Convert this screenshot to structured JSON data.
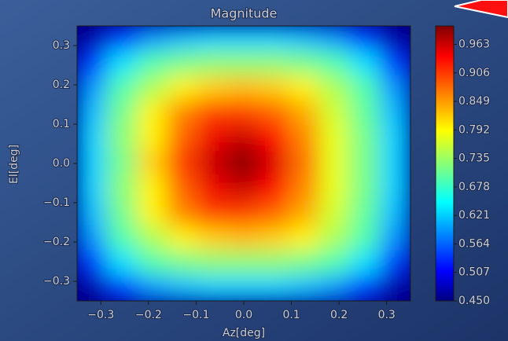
{
  "chart_data": {
    "type": "heatmap",
    "title": "Magnitude",
    "x_label": "Az[deg]",
    "y_label": "El[deg]",
    "xlim": [
      -0.35,
      0.35
    ],
    "ylim": [
      -0.35,
      0.35
    ],
    "xticks": [
      {
        "value": -0.3,
        "label": "−0.3"
      },
      {
        "value": -0.2,
        "label": "−0.2"
      },
      {
        "value": -0.1,
        "label": "−0.1"
      },
      {
        "value": 0,
        "label": "0.0"
      },
      0.1,
      0.2,
      0.3
    ],
    "yticks": [
      {
        "value": -0.3,
        "label": "−0.3"
      },
      {
        "value": -0.2,
        "label": "−0.2"
      },
      {
        "value": -0.1,
        "label": "−0.1"
      },
      {
        "value": 0,
        "label": "0.0"
      },
      0.1,
      0.2,
      0.3
    ],
    "clim": [
      0.45,
      1.0
    ],
    "cticks": [
      {
        "value": 0.45,
        "label": "0.450"
      },
      0.507,
      0.564,
      0.621,
      {
        "value": 0.678,
        "label": "0.678"
      },
      0.735,
      0.792,
      0.849,
      0.906,
      0.963
    ],
    "colormap": "jet",
    "z": [
      [
        0.47,
        0.55,
        0.6,
        0.62,
        0.63,
        0.63,
        0.63,
        0.62,
        0.6,
        0.55,
        0.47
      ],
      [
        0.55,
        0.64,
        0.7,
        0.72,
        0.73,
        0.73,
        0.73,
        0.72,
        0.7,
        0.64,
        0.55
      ],
      [
        0.6,
        0.7,
        0.75,
        0.8,
        0.82,
        0.83,
        0.82,
        0.8,
        0.75,
        0.7,
        0.6
      ],
      [
        0.62,
        0.72,
        0.8,
        0.86,
        0.9,
        0.9,
        0.88,
        0.84,
        0.77,
        0.71,
        0.62
      ],
      [
        0.63,
        0.73,
        0.8,
        0.88,
        0.94,
        0.96,
        0.93,
        0.86,
        0.78,
        0.72,
        0.63
      ],
      [
        0.63,
        0.72,
        0.82,
        0.9,
        0.96,
        1.0,
        0.95,
        0.87,
        0.78,
        0.72,
        0.63
      ],
      [
        0.63,
        0.73,
        0.8,
        0.88,
        0.94,
        0.96,
        0.93,
        0.86,
        0.78,
        0.72,
        0.63
      ],
      [
        0.62,
        0.72,
        0.8,
        0.86,
        0.9,
        0.9,
        0.88,
        0.84,
        0.77,
        0.71,
        0.62
      ],
      [
        0.6,
        0.7,
        0.75,
        0.8,
        0.82,
        0.83,
        0.82,
        0.8,
        0.75,
        0.7,
        0.6
      ],
      [
        0.55,
        0.64,
        0.7,
        0.72,
        0.73,
        0.73,
        0.73,
        0.72,
        0.7,
        0.64,
        0.55
      ],
      [
        0.47,
        0.55,
        0.6,
        0.62,
        0.63,
        0.63,
        0.63,
        0.62,
        0.6,
        0.55,
        0.47
      ]
    ]
  }
}
